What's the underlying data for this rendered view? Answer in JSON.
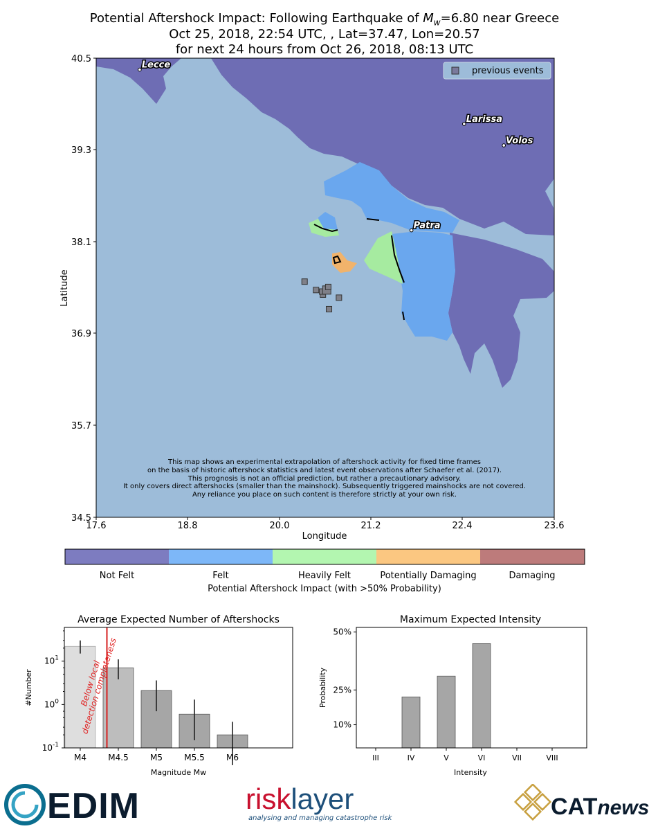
{
  "header": {
    "title_line1_pre": "Potential Aftershock Impact: Following Earthquake of ",
    "title_mag_symbol": "M",
    "title_mag_sub": "w",
    "title_line1_post": "=6.80 near Greece",
    "title_line2": "Oct 25, 2018, 22:54 UTC, , Lat=37.47, Lon=20.57",
    "title_line3": "for next  24 hours from Oct 26, 2018, 08:13 UTC"
  },
  "map": {
    "xlabel": "Longitude",
    "ylabel": "Latitude",
    "xticks": [
      "17.6",
      "18.8",
      "20.0",
      "21.2",
      "22.4",
      "23.6"
    ],
    "yticks": [
      "40.5",
      "39.3",
      "38.1",
      "36.9",
      "35.7",
      "34.5"
    ],
    "legend_label": "previous events",
    "cities": [
      {
        "name": "Lecce",
        "lon": 18.17,
        "lat": 40.35
      },
      {
        "name": "Larissa",
        "lon": 22.42,
        "lat": 39.64
      },
      {
        "name": "Volos",
        "lon": 22.94,
        "lat": 39.36
      },
      {
        "name": "Patra",
        "lon": 21.73,
        "lat": 38.25
      }
    ],
    "previous_events": [
      {
        "lon": 20.33,
        "lat": 37.58
      },
      {
        "lon": 20.48,
        "lat": 37.47
      },
      {
        "lon": 20.57,
        "lat": 37.41
      },
      {
        "lon": 20.56,
        "lat": 37.45
      },
      {
        "lon": 20.62,
        "lat": 37.47
      },
      {
        "lon": 20.64,
        "lat": 37.51
      },
      {
        "lon": 20.78,
        "lat": 37.37
      },
      {
        "lon": 20.65,
        "lat": 37.22
      }
    ],
    "disclaimer": [
      "This map shows an experimental extrapolation of aftershock activity for fixed time frames",
      "on the basis of historic aftershock statistics and latest event observations after Schaefer et al. (2017).",
      "This prognosis is not an official prediction, but rather a precautionary advisory.",
      "It only covers direct aftershocks (smaller than the mainshock). Subsequently triggered mainshocks are not covered.",
      "Any reliance you place on such content is therefore strictly at your own risk."
    ],
    "colors": {
      "sea": "#9dbcd9",
      "not_felt": "#6e6db4",
      "felt": "#6aa7ee",
      "heavily_felt": "#a6eba0",
      "potentially_damaging": "#f1b36b",
      "damaging": "#b66c6e"
    }
  },
  "colorbar": {
    "label": "Potential Aftershock Impact (with >50% Probability)",
    "categories": [
      {
        "name": "Not Felt",
        "color": "#7d7cc0"
      },
      {
        "name": "Felt",
        "color": "#7db7f8"
      },
      {
        "name": "Heavily Felt",
        "color": "#b3f6b0"
      },
      {
        "name": "Potentially Damaging",
        "color": "#fbc781"
      },
      {
        "name": "Damaging",
        "color": "#bd7b7b"
      }
    ]
  },
  "chart_data": [
    {
      "type": "bar",
      "title": "Average Expected Number of Aftershocks",
      "xlabel": "Magnitude Mw",
      "ylabel": "#Number",
      "log_y": true,
      "ylim": [
        0.1,
        60
      ],
      "ytick_labels": [
        "10^1",
        "10^0",
        "10^-1"
      ],
      "categories": [
        "M4",
        "M4.5",
        "M5",
        "M5.5",
        "M6"
      ],
      "values": [
        22,
        7,
        2.1,
        0.6,
        0.2
      ],
      "error_low": [
        15,
        3.8,
        0.7,
        0.15,
        0.04
      ],
      "error_high": [
        30,
        11,
        3.6,
        1.3,
        0.4
      ],
      "completeness_magnitude": 4.35,
      "annotation": "Below local detection completeness",
      "annotation_line1": "Below local",
      "annotation_line2": "detection completeness",
      "annotation_color": "#e02020"
    },
    {
      "type": "bar",
      "title": "Maximum Expected Intensity",
      "xlabel": "Intensity",
      "ylabel": "Probability",
      "ytick_labels": [
        "50%",
        "25%",
        "10%"
      ],
      "categories": [
        "III",
        "IV",
        "V",
        "VI",
        "VII",
        "VIII"
      ],
      "values": [
        0,
        22,
        31,
        45,
        0,
        0
      ]
    }
  ],
  "logos": {
    "edim": "EDIM",
    "risk": "risk",
    "layer": "layer",
    "risklayer_tagline": "analysing and managing catastrophe risk",
    "cat": "CAT",
    "news": "news"
  }
}
